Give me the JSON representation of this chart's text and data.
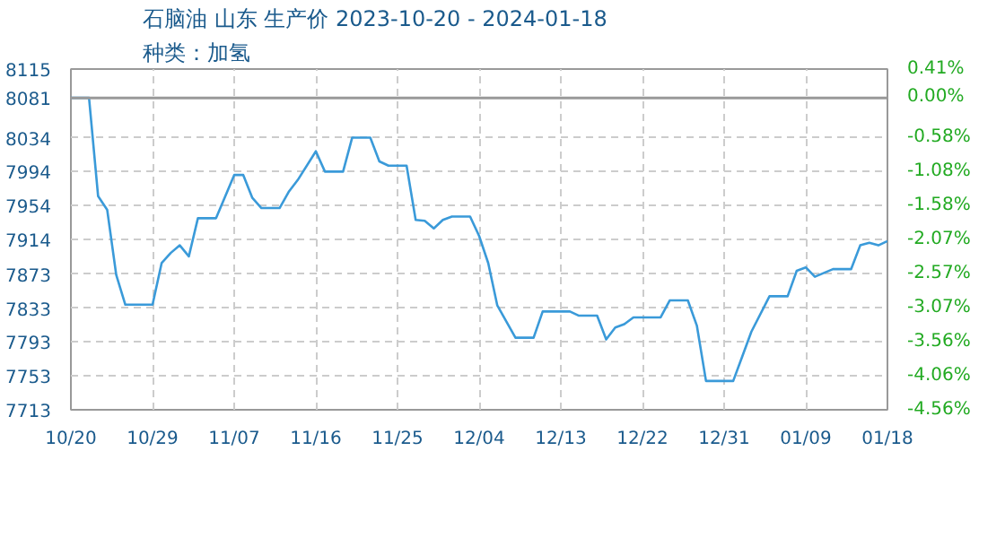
{
  "chart_data": {
    "type": "line",
    "title": "石脑油 山东 生产价 2023-10-20 - 2024-01-18",
    "subtitle": "种类：加氢",
    "x": [
      "2023-10-20",
      "2023-10-22",
      "2023-10-23",
      "2023-10-24",
      "2023-10-25",
      "2023-10-26",
      "2023-10-29",
      "2023-10-30",
      "2023-10-31",
      "2023-11-01",
      "2023-11-02",
      "2023-11-03",
      "2023-11-05",
      "2023-11-07",
      "2023-11-08",
      "2023-11-09",
      "2023-11-10",
      "2023-11-12",
      "2023-11-13",
      "2023-11-14",
      "2023-11-16",
      "2023-11-17",
      "2023-11-19",
      "2023-11-20",
      "2023-11-22",
      "2023-11-23",
      "2023-11-24",
      "2023-11-26",
      "2023-11-27",
      "2023-11-28",
      "2023-11-29",
      "2023-11-30",
      "2023-12-01",
      "2023-12-03",
      "2023-12-04",
      "2023-12-05",
      "2023-12-06",
      "2023-12-08",
      "2023-12-10",
      "2023-12-11",
      "2023-12-14",
      "2023-12-15",
      "2023-12-17",
      "2023-12-18",
      "2023-12-19",
      "2023-12-20",
      "2023-12-21",
      "2023-12-24",
      "2023-12-25",
      "2023-12-27",
      "2023-12-28",
      "2023-12-29",
      "2024-01-01",
      "2024-01-02",
      "2024-01-03",
      "2024-01-05",
      "2024-01-07",
      "2024-01-08",
      "2024-01-09",
      "2024-01-10",
      "2024-01-12",
      "2024-01-14",
      "2024-01-15",
      "2024-01-16",
      "2024-01-17",
      "2024-01-18"
    ],
    "series": [
      {
        "color": "#3a9ad9",
        "values": [
          8081,
          8081,
          7965,
          7949,
          7872,
          7837,
          7837,
          7886,
          7898,
          7907,
          7894,
          7939,
          7939,
          7990,
          7990,
          7963,
          7951,
          7951,
          7970,
          7984,
          8018,
          7994,
          7994,
          8034,
          8034,
          8006,
          8001,
          8001,
          7937,
          7936,
          7927,
          7937,
          7941,
          7941,
          7918,
          7886,
          7836,
          7798,
          7798,
          7829,
          7829,
          7824,
          7824,
          7796,
          7810,
          7814,
          7822,
          7822,
          7842,
          7842,
          7812,
          7747,
          7747,
          7776,
          7805,
          7847,
          7847,
          7877,
          7881,
          7870,
          7879,
          7879,
          7907,
          7910,
          7907,
          7912
        ]
      }
    ],
    "xlim": [
      "2023-10-20",
      "2024-01-18"
    ],
    "xticks": [
      {
        "value": "2023-10-20",
        "label": "10/20"
      },
      {
        "value": "2023-10-29",
        "label": "10/29"
      },
      {
        "value": "2023-11-07",
        "label": "11/07"
      },
      {
        "value": "2023-11-16",
        "label": "11/16"
      },
      {
        "value": "2023-11-25",
        "label": "11/25"
      },
      {
        "value": "2023-12-04",
        "label": "12/04"
      },
      {
        "value": "2023-12-13",
        "label": "12/13"
      },
      {
        "value": "2023-12-22",
        "label": "12/22"
      },
      {
        "value": "2023-12-31",
        "label": "12/31"
      },
      {
        "value": "2024-01-09",
        "label": "01/09"
      },
      {
        "value": "2024-01-18",
        "label": "01/18"
      }
    ],
    "ylim": [
      7713,
      8115
    ],
    "yticks": [
      7713,
      7753,
      7793,
      7833,
      7873,
      7914,
      7954,
      7994,
      8034,
      8081,
      8115
    ],
    "y2lim": [
      -4.56,
      0.41
    ],
    "y2ticks": [
      {
        "value": -4.56,
        "label": "-4.56%"
      },
      {
        "value": -4.06,
        "label": "-4.06%"
      },
      {
        "value": -3.56,
        "label": "-3.56%"
      },
      {
        "value": -3.07,
        "label": "-3.07%"
      },
      {
        "value": -2.57,
        "label": "-2.57%"
      },
      {
        "value": -2.07,
        "label": "-2.07%"
      },
      {
        "value": -1.58,
        "label": "-1.58%"
      },
      {
        "value": -1.08,
        "label": "-1.08%"
      },
      {
        "value": -0.58,
        "label": "-0.58%"
      },
      {
        "value": 0.0,
        "label": "0.00%"
      },
      {
        "value": 0.41,
        "label": "0.41%"
      }
    ],
    "ref_lines": [
      {
        "axis": "y",
        "value": 8081,
        "color": "#999999"
      }
    ],
    "grid": true,
    "marker": "none",
    "line_style": "solid"
  }
}
